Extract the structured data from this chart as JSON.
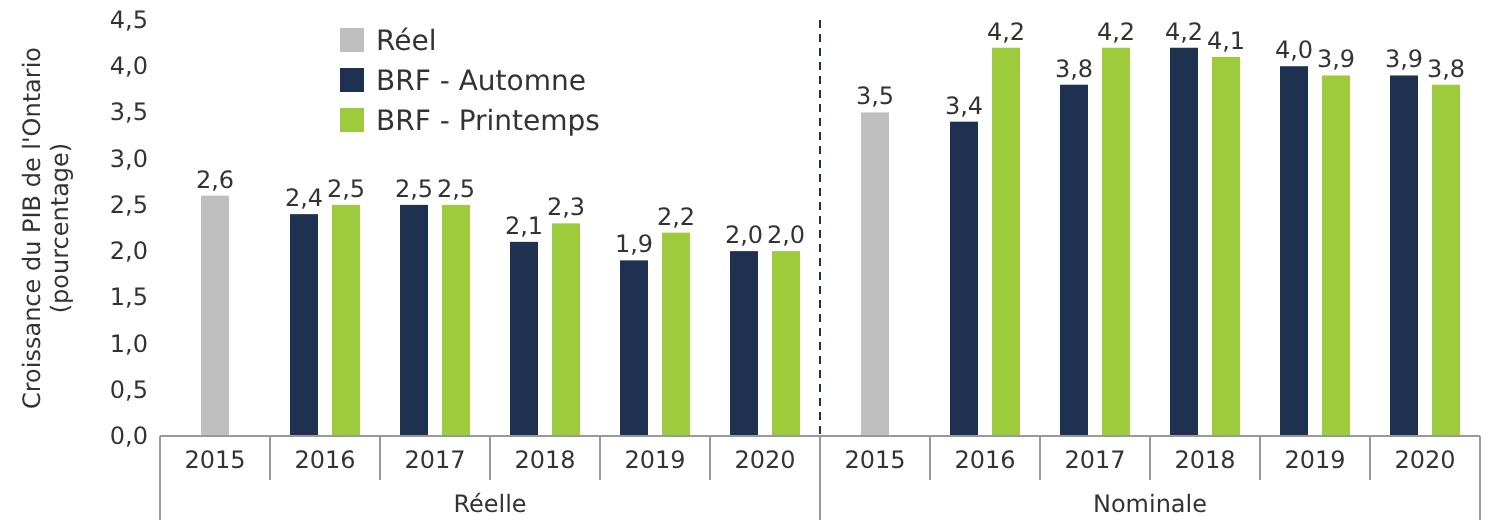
{
  "chart_data": {
    "type": "bar",
    "ylabel": "Croissance du PIB de l'Ontario (pourcentage)",
    "categories": [
      "2015",
      "2016",
      "2017",
      "2018",
      "2019",
      "2020",
      "2015",
      "2016",
      "2017",
      "2018",
      "2019",
      "2020"
    ],
    "series": [
      {
        "name": "Réel",
        "color": "#bfbfbf",
        "values": [
          2.6,
          null,
          null,
          null,
          null,
          null,
          3.5,
          null,
          null,
          null,
          null,
          null
        ],
        "value_labels": [
          "2,6",
          null,
          null,
          null,
          null,
          null,
          "3,5",
          null,
          null,
          null,
          null,
          null
        ]
      },
      {
        "name": "BRF - Automne",
        "color": "#1f3150",
        "values": [
          null,
          2.4,
          2.5,
          2.1,
          1.9,
          2.0,
          null,
          3.4,
          3.8,
          4.2,
          4.0,
          3.9
        ],
        "value_labels": [
          null,
          "2,4",
          "2,5",
          "2,1",
          "1,9",
          "2,0",
          null,
          "3,4",
          "3,8",
          "4,2",
          "4,0",
          "3,9"
        ]
      },
      {
        "name": "BRF - Printemps",
        "color": "#9dcb3c",
        "values": [
          null,
          2.5,
          2.5,
          2.3,
          2.2,
          2.0,
          null,
          4.2,
          4.2,
          4.1,
          3.9,
          3.8
        ],
        "value_labels": [
          null,
          "2,5",
          "2,5",
          "2,3",
          "2,2",
          "2,0",
          null,
          "4,2",
          "4,2",
          "4,1",
          "3,9",
          "3,8"
        ]
      }
    ],
    "ylim": [
      0,
      4.5
    ],
    "yticks": [
      {
        "value": 0,
        "label": "0,0"
      },
      {
        "value": 0.5,
        "label": "0,5"
      },
      {
        "value": 1,
        "label": "1,0"
      },
      {
        "value": 1.5,
        "label": "1,5"
      },
      {
        "value": 2,
        "label": "2,0"
      },
      {
        "value": 2.5,
        "label": "2,5"
      },
      {
        "value": 3,
        "label": "3,0"
      },
      {
        "value": 3.5,
        "label": "3,5"
      },
      {
        "value": 4,
        "label": "4,0"
      },
      {
        "value": 4.5,
        "label": "4,5"
      }
    ],
    "annotations": [
      "Réelle",
      "Nominale"
    ],
    "legend": "top left",
    "grid": false
  }
}
